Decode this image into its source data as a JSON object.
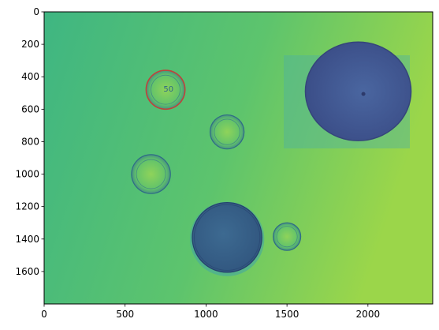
{
  "chart_data": {
    "type": "heatmap",
    "title": "",
    "xlabel": "",
    "ylabel": "",
    "image_width": 2400,
    "image_height": 1800,
    "xlim": [
      0,
      2400
    ],
    "ylim": [
      1800,
      0
    ],
    "x_ticks": [
      0,
      500,
      1000,
      1500,
      2000
    ],
    "y_ticks": [
      0,
      200,
      400,
      600,
      800,
      1000,
      1200,
      1400,
      1600
    ],
    "x_tick_labels": [
      "0",
      "500",
      "1000",
      "1500",
      "2000"
    ],
    "y_tick_labels": [
      "0",
      "200",
      "400",
      "600",
      "800",
      "1000",
      "1200",
      "1400",
      "1600"
    ],
    "grid": false,
    "colormap": "viridis",
    "colors": {
      "background_left": "#3fb682",
      "background_right": "#9bd64a",
      "object_dark": "#3f5a8c",
      "coin_edge_highlight": "#c0423a"
    },
    "objects": [
      {
        "name": "coin-50-cent",
        "cx": 750,
        "cy": 480,
        "r": 120,
        "highlighted_edge": true,
        "value_label": "50"
      },
      {
        "name": "coin-small",
        "cx": 1130,
        "cy": 740,
        "r": 105,
        "highlighted_edge": false
      },
      {
        "name": "coin-left",
        "cx": 660,
        "cy": 1000,
        "r": 120,
        "highlighted_edge": false
      },
      {
        "name": "large-disc",
        "cx": 1130,
        "cy": 1390,
        "r": 215,
        "highlighted_edge": false
      },
      {
        "name": "coin-tiny",
        "cx": 1500,
        "cy": 1385,
        "r": 85,
        "highlighted_edge": false
      },
      {
        "name": "orange",
        "cx": 1940,
        "cy": 490,
        "r": 320,
        "highlighted_edge": false
      }
    ]
  }
}
